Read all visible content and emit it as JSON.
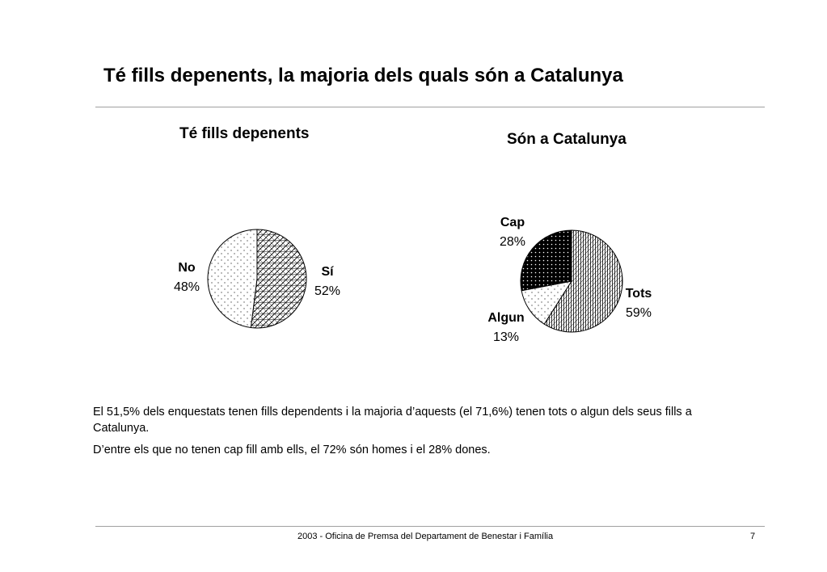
{
  "slide": {
    "title": "Té fills depenents, la majoria dels quals són a Catalunya",
    "paragraphs": [
      "El 51,5% dels enquestats tenen fills dependents i la majoria d’aquests (el 71,6%) tenen tots o algun dels seus fills a Catalunya.",
      "D’entre els que no tenen cap fill amb ells, el 72% són homes i el 28% dones."
    ],
    "footer": "2003 - Oficina de Premsa del Departament de Benestar i Família",
    "page_number": "7"
  },
  "chart_data": [
    {
      "type": "pie",
      "title": "Té fills depenents",
      "slices": [
        {
          "name": "Sí",
          "value": 52,
          "label": "52%",
          "pattern": "diag-cross"
        },
        {
          "name": "No",
          "value": 48,
          "label": "48%",
          "pattern": "dots"
        }
      ],
      "legend": "none"
    },
    {
      "type": "pie",
      "title": "Són a Catalunya",
      "slices": [
        {
          "name": "Tots",
          "value": 59,
          "label": "59%",
          "pattern": "vertical-diag"
        },
        {
          "name": "Algun",
          "value": 13,
          "label": "13%",
          "pattern": "dots"
        },
        {
          "name": "Cap",
          "value": 28,
          "label": "28%",
          "pattern": "dark-grid"
        }
      ],
      "legend": "none"
    }
  ]
}
